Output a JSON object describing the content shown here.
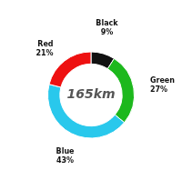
{
  "chart_data": {
    "type": "doughnut",
    "title": "165km",
    "categories": [
      "Black",
      "Green",
      "Blue",
      "Red"
    ],
    "values": [
      9,
      27,
      43,
      21
    ],
    "value_labels": [
      "9%",
      "27%",
      "43%",
      "21%"
    ],
    "colors": [
      "#111111",
      "#1db81d",
      "#29c8ec",
      "#ee1111"
    ],
    "data_labels": true
  }
}
